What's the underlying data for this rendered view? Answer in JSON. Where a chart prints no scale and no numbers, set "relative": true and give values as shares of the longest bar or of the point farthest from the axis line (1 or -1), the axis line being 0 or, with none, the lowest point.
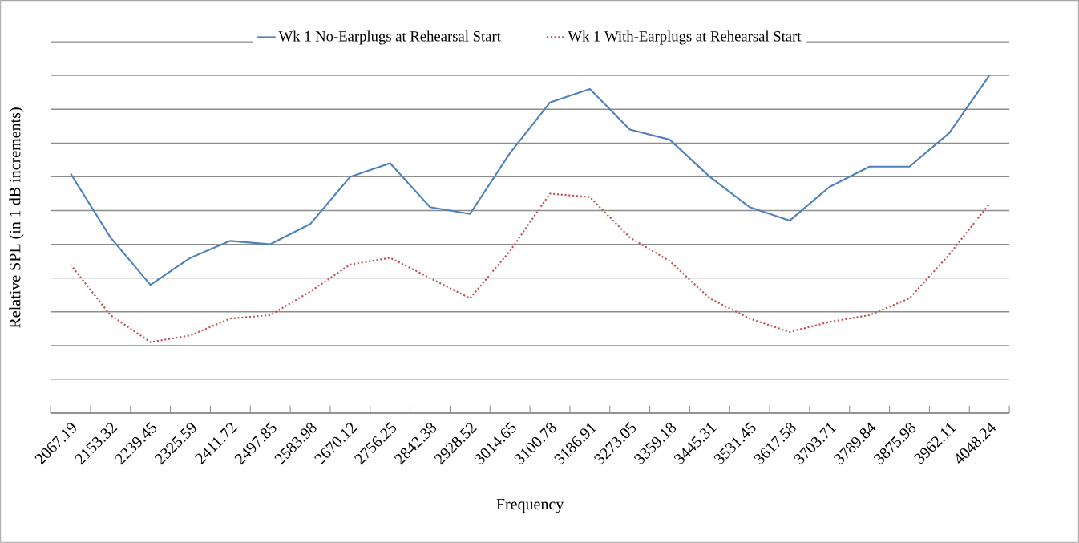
{
  "chart_data": {
    "type": "line",
    "xlabel": "Frequency",
    "ylabel": "Relative SPL (in 1 dB increments)",
    "relative": true,
    "grid": "y",
    "legend": "top",
    "categories": [
      "2067.19",
      "2153.32",
      "2239.45",
      "2325.59",
      "2411.72",
      "2497.85",
      "2583.98",
      "2670.12",
      "2756.25",
      "2842.38",
      "2928.52",
      "3014.65",
      "3100.78",
      "3186.91",
      "3273.05",
      "3359.18",
      "3445.31",
      "3531.45",
      "3617.58",
      "3703.71",
      "3789.84",
      "3875.98",
      "3962.11",
      "4048.24"
    ],
    "series": [
      {
        "name": "Wk 1 No-Earplugs at Rehearsal Start",
        "color": "#4f81bd",
        "line_style": "solid",
        "values": [
          0.71,
          0.52,
          0.38,
          0.46,
          0.51,
          0.5,
          0.56,
          0.7,
          0.74,
          0.61,
          0.59,
          0.77,
          0.92,
          0.96,
          0.84,
          0.81,
          0.7,
          0.61,
          0.57,
          0.67,
          0.73,
          0.73,
          0.83,
          1
        ]
      },
      {
        "name": "Wk 1  With-Earplugs at Rehearsal Start",
        "color": "#c0504d",
        "line_style": "dotted",
        "values": [
          0.44,
          0.29,
          0.21,
          0.23,
          0.28,
          0.29,
          0.36,
          0.44,
          0.46,
          0.4,
          0.34,
          0.48,
          0.65,
          0.64,
          0.52,
          0.45,
          0.34,
          0.28,
          0.24,
          0.27,
          0.29,
          0.34,
          0.47,
          0.62
        ]
      }
    ]
  }
}
